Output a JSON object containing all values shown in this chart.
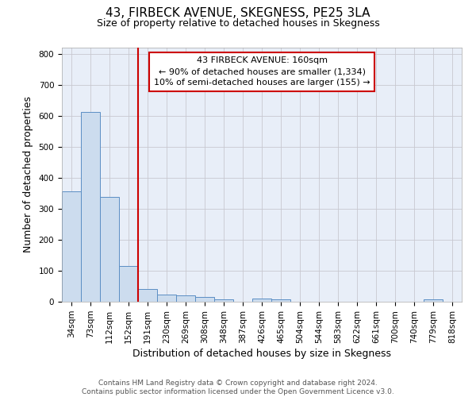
{
  "title": "43, FIRBECK AVENUE, SKEGNESS, PE25 3LA",
  "subtitle": "Size of property relative to detached houses in Skegness",
  "xlabel": "Distribution of detached houses by size in Skegness",
  "ylabel": "Number of detached properties",
  "footer_line1": "Contains HM Land Registry data © Crown copyright and database right 2024.",
  "footer_line2": "Contains public sector information licensed under the Open Government Licence v3.0.",
  "categories": [
    "34sqm",
    "73sqm",
    "112sqm",
    "152sqm",
    "191sqm",
    "230sqm",
    "269sqm",
    "308sqm",
    "348sqm",
    "387sqm",
    "426sqm",
    "465sqm",
    "504sqm",
    "544sqm",
    "583sqm",
    "622sqm",
    "661sqm",
    "700sqm",
    "740sqm",
    "779sqm",
    "818sqm"
  ],
  "values": [
    357,
    612,
    338,
    115,
    40,
    22,
    20,
    15,
    8,
    0,
    9,
    8,
    0,
    0,
    0,
    0,
    0,
    0,
    0,
    8,
    0
  ],
  "bar_color": "#ccdcee",
  "bar_edge_color": "#5b8ec4",
  "grid_color": "#c8c8d0",
  "bg_color": "#e8eef8",
  "red_line_color": "#cc0000",
  "red_line_bar_index": 3,
  "annotation_line1": "43 FIRBECK AVENUE: 160sqm",
  "annotation_line2": "← 90% of detached houses are smaller (1,334)",
  "annotation_line3": "10% of semi-detached houses are larger (155) →",
  "annotation_box_facecolor": "#ffffff",
  "annotation_box_edgecolor": "#cc0000",
  "ylim": [
    0,
    820
  ],
  "yticks": [
    0,
    100,
    200,
    300,
    400,
    500,
    600,
    700,
    800
  ],
  "title_fontsize": 11,
  "subtitle_fontsize": 9,
  "xlabel_fontsize": 9,
  "ylabel_fontsize": 9,
  "tick_fontsize": 7.5,
  "footer_fontsize": 6.5,
  "annotation_fontsize": 8
}
